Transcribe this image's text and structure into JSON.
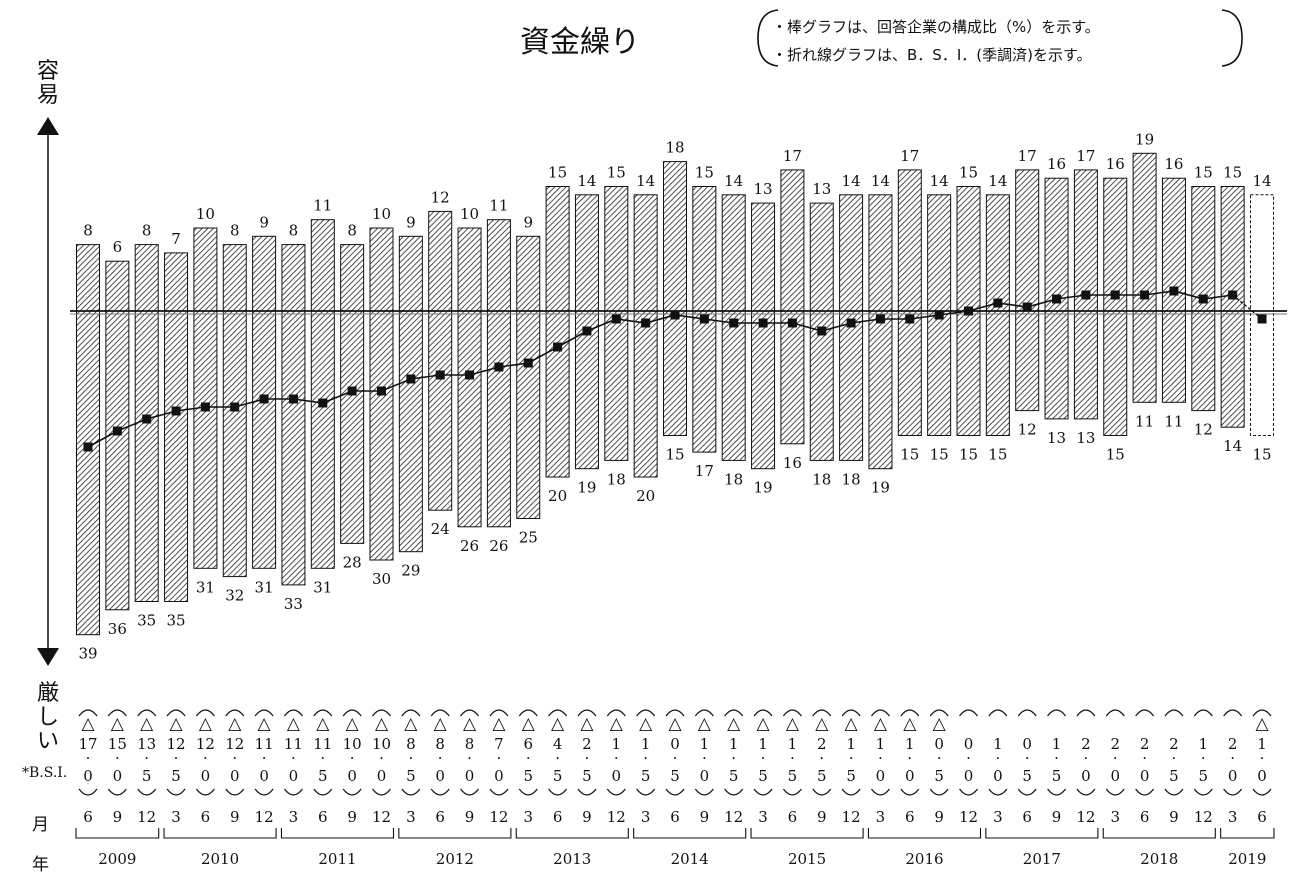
{
  "chart_data": {
    "type": "bar",
    "title": "資金繰り",
    "notes": [
      "・棒グラフは、回答企業の構成比（%）を示す。",
      "・折れ線グラフは、B．S．I．(季調済)を示す。"
    ],
    "ylabel_top": "容易",
    "ylabel_bottom": "厳しい",
    "row_labels": {
      "bsi": "*B.S.I.",
      "month": "月",
      "year": "年"
    },
    "months": [
      "6",
      "9",
      "12",
      "3",
      "6",
      "9",
      "12",
      "3",
      "6",
      "9",
      "12",
      "3",
      "6",
      "9",
      "12",
      "3",
      "6",
      "9",
      "12",
      "3",
      "6",
      "9",
      "12",
      "3",
      "6",
      "9",
      "12",
      "3",
      "6",
      "9",
      "12",
      "3",
      "6",
      "9",
      "12",
      "3",
      "6",
      "9",
      "12",
      "3",
      "6"
    ],
    "years": [
      {
        "label": "2009",
        "start": 0,
        "end": 2
      },
      {
        "label": "2010",
        "start": 3,
        "end": 6
      },
      {
        "label": "2011",
        "start": 7,
        "end": 10
      },
      {
        "label": "2012",
        "start": 11,
        "end": 14
      },
      {
        "label": "2013",
        "start": 15,
        "end": 18
      },
      {
        "label": "2014",
        "start": 19,
        "end": 22
      },
      {
        "label": "2015",
        "start": 23,
        "end": 26
      },
      {
        "label": "2016",
        "start": 27,
        "end": 30
      },
      {
        "label": "2017",
        "start": 31,
        "end": 34
      },
      {
        "label": "2018",
        "start": 35,
        "end": 38
      },
      {
        "label": "2019",
        "start": 39,
        "end": 40
      }
    ],
    "series": [
      {
        "name": "容易",
        "values": [
          8,
          6,
          8,
          7,
          10,
          8,
          9,
          8,
          11,
          8,
          10,
          9,
          12,
          10,
          11,
          9,
          15,
          14,
          15,
          14,
          18,
          15,
          14,
          13,
          17,
          13,
          14,
          14,
          17,
          14,
          15,
          14,
          17,
          16,
          17,
          16,
          19,
          16,
          15,
          15,
          14
        ]
      },
      {
        "name": "厳しい",
        "values": [
          39,
          36,
          35,
          35,
          31,
          32,
          31,
          33,
          31,
          28,
          30,
          29,
          24,
          26,
          26,
          25,
          20,
          19,
          18,
          20,
          15,
          17,
          18,
          19,
          16,
          18,
          18,
          19,
          15,
          15,
          15,
          15,
          12,
          13,
          13,
          15,
          11,
          11,
          12,
          14,
          15
        ]
      }
    ],
    "bsi_values": [
      "△17.0",
      "△15.0",
      "△13.5",
      "△12.5",
      "△12.0",
      "△12.0",
      "△11.0",
      "△11.0",
      "△11.5",
      "△10.0",
      "△10.0",
      "△8.5",
      "△8.0",
      "△8.0",
      "△7.0",
      "△6.5",
      "△4.5",
      "△2.5",
      "△1.0",
      "△1.5",
      "△0.5",
      "△1.0",
      "△1.5",
      "△1.5",
      "△1.5",
      "△2.5",
      "△1.5",
      "△1.0",
      "△1.0",
      "△0.5",
      "0.0",
      "1.0",
      "0.5",
      "1.5",
      "2.0",
      "2.0",
      "2.0",
      "2.5",
      "1.5",
      "2.0",
      "△1.0"
    ],
    "bsi_numeric": [
      -17,
      -15,
      -13.5,
      -12.5,
      -12,
      -12,
      -11,
      -11,
      -11.5,
      -10,
      -10,
      -8.5,
      -8,
      -8,
      -7,
      -6.5,
      -4.5,
      -2.5,
      -1,
      -1.5,
      -0.5,
      -1,
      -1.5,
      -1.5,
      -1.5,
      -2.5,
      -1.5,
      -1,
      -1,
      -0.5,
      0,
      1,
      0.5,
      1.5,
      2,
      2,
      2,
      2.5,
      1.5,
      2,
      -1
    ],
    "forecast_index": 40
  }
}
